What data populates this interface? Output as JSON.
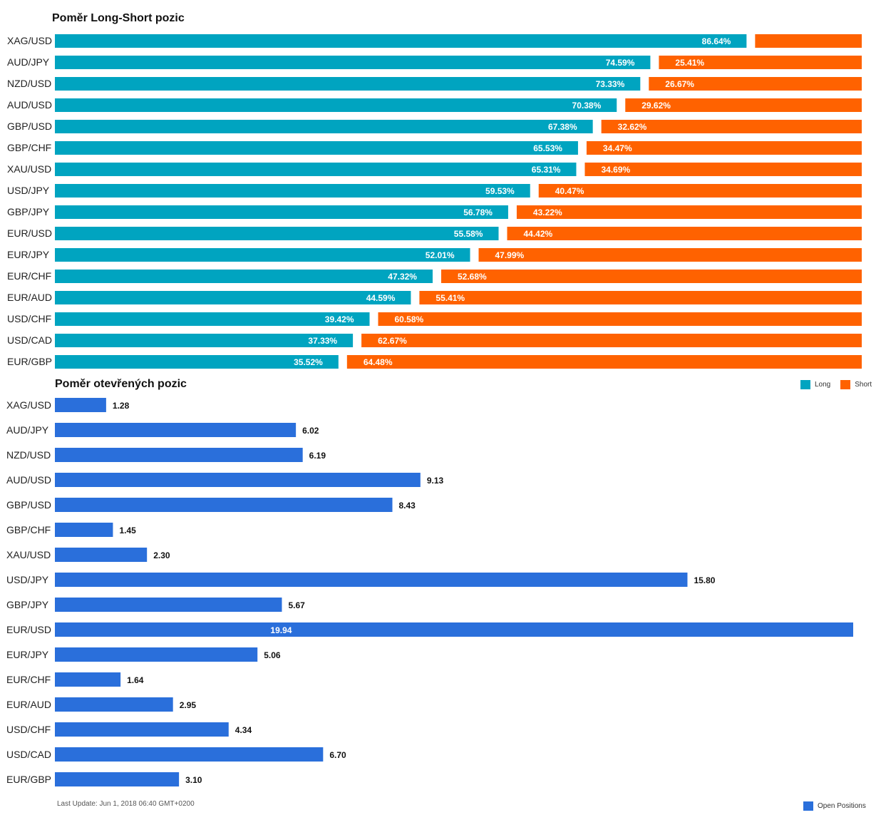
{
  "chart_data": [
    {
      "type": "bar",
      "orientation": "horizontal",
      "stacked": true,
      "title": "Poměr Long-Short pozic",
      "categories": [
        "XAG/USD",
        "AUD/JPY",
        "NZD/USD",
        "AUD/USD",
        "GBP/USD",
        "GBP/CHF",
        "XAU/USD",
        "USD/JPY",
        "GBP/JPY",
        "EUR/USD",
        "EUR/JPY",
        "EUR/CHF",
        "EUR/AUD",
        "USD/CHF",
        "USD/CAD",
        "EUR/GBP"
      ],
      "series": [
        {
          "name": "Long",
          "color": "#00a4c0",
          "values": [
            86.64,
            74.59,
            73.33,
            70.38,
            67.38,
            65.53,
            65.31,
            59.53,
            56.78,
            55.58,
            52.01,
            47.32,
            44.59,
            39.42,
            37.33,
            35.52
          ],
          "labels": [
            "86.64%",
            "74.59%",
            "73.33%",
            "70.38%",
            "67.38%",
            "65.53%",
            "65.31%",
            "59.53%",
            "56.78%",
            "55.58%",
            "52.01%",
            "47.32%",
            "44.59%",
            "39.42%",
            "37.33%",
            "35.52%"
          ]
        },
        {
          "name": "Short",
          "color": "#ff6200",
          "values": [
            13.36,
            25.41,
            26.67,
            29.62,
            32.62,
            34.47,
            34.69,
            40.47,
            43.22,
            44.42,
            47.99,
            52.68,
            55.41,
            60.58,
            62.67,
            64.48
          ],
          "labels": [
            "",
            "25.41%",
            "26.67%",
            "29.62%",
            "32.62%",
            "34.47%",
            "34.69%",
            "40.47%",
            "43.22%",
            "44.42%",
            "47.99%",
            "52.68%",
            "55.41%",
            "60.58%",
            "62.67%",
            "64.48%"
          ]
        }
      ],
      "legend": "right",
      "grid": false
    },
    {
      "type": "bar",
      "orientation": "horizontal",
      "title": "Poměr otevřených pozic",
      "categories": [
        "XAG/USD",
        "AUD/JPY",
        "NZD/USD",
        "AUD/USD",
        "GBP/USD",
        "GBP/CHF",
        "XAU/USD",
        "USD/JPY",
        "GBP/JPY",
        "EUR/USD",
        "EUR/JPY",
        "EUR/CHF",
        "EUR/AUD",
        "USD/CHF",
        "USD/CAD",
        "EUR/GBP"
      ],
      "series": [
        {
          "name": "Open Positions",
          "color": "#2a6fdb",
          "values": [
            1.28,
            6.02,
            6.19,
            9.13,
            8.43,
            1.45,
            2.3,
            15.8,
            5.67,
            19.94,
            5.06,
            1.64,
            2.95,
            4.34,
            6.7,
            3.1
          ],
          "labels": [
            "1.28",
            "6.02",
            "6.19",
            "9.13",
            "8.43",
            "1.45",
            "2.30",
            "15.80",
            "5.67",
            "19.94",
            "5.06",
            "1.64",
            "2.95",
            "4.34",
            "6.70",
            "3.10"
          ]
        }
      ],
      "xlim": [
        0,
        19.94
      ],
      "legend": "bottom-right",
      "grid": false
    }
  ],
  "footer": {
    "last_update": "Last Update: Jun 1, 2018 06:40 GMT+0200"
  },
  "legend1": {
    "long": "Long",
    "short": "Short"
  },
  "legend2": {
    "open": "Open Positions"
  }
}
